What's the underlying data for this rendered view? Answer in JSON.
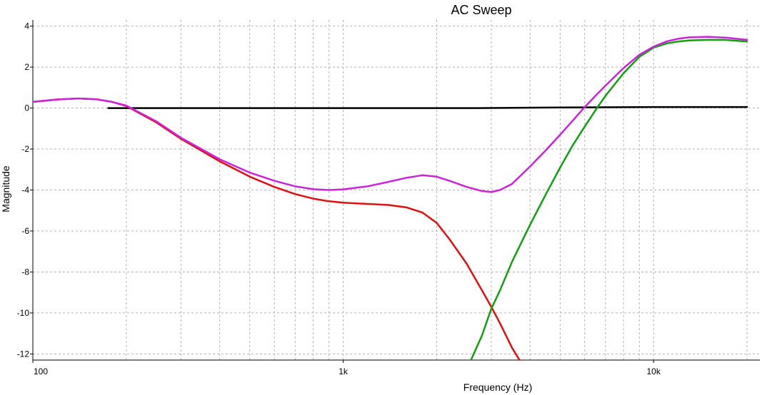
{
  "chart_data": {
    "type": "line",
    "title": "AC Sweep",
    "xlabel": "Frequency (Hz)",
    "ylabel": "Magnitude",
    "xscale": "log",
    "xlim": [
      100,
      22000
    ],
    "ylim": [
      -12.3,
      4.3
    ],
    "grid": true,
    "x_ticks": [
      {
        "value": 100,
        "label": "100"
      },
      {
        "value": 1000,
        "label": "1k"
      },
      {
        "value": 10000,
        "label": "10k"
      }
    ],
    "y_ticks": [
      {
        "value": 4,
        "label": "4"
      },
      {
        "value": 2,
        "label": "2"
      },
      {
        "value": 0,
        "label": "0"
      },
      {
        "value": -2,
        "label": "-2"
      },
      {
        "value": -4,
        "label": "-4"
      },
      {
        "value": -6,
        "label": "-6"
      },
      {
        "value": -8,
        "label": "-8"
      },
      {
        "value": -10,
        "label": "-10"
      },
      {
        "value": -12,
        "label": "-12"
      }
    ],
    "series": [
      {
        "color": "#000000",
        "x": [
          175,
          1000,
          2700,
          5000,
          10000,
          20000
        ],
        "y": [
          0.0,
          0.0,
          0.0,
          0.03,
          0.05,
          0.05
        ]
      },
      {
        "color": "#e01010",
        "x": [
          100,
          120,
          140,
          160,
          180,
          200,
          250,
          300,
          400,
          500,
          600,
          700,
          800,
          900,
          1000,
          1200,
          1400,
          1600,
          1800,
          2000,
          2200,
          2500,
          2800,
          3000,
          3200,
          3500,
          3700
        ],
        "y": [
          0.3,
          0.42,
          0.47,
          0.43,
          0.3,
          0.1,
          -0.7,
          -1.5,
          -2.6,
          -3.35,
          -3.85,
          -4.2,
          -4.42,
          -4.55,
          -4.62,
          -4.68,
          -4.73,
          -4.85,
          -5.1,
          -5.6,
          -6.4,
          -7.6,
          -8.9,
          -9.7,
          -10.5,
          -11.7,
          -12.3
        ]
      },
      {
        "color": "#10a010",
        "x": [
          2580,
          2800,
          3000,
          3200,
          3500,
          4000,
          4500,
          5000,
          5500,
          6000,
          6500,
          7000,
          8000,
          9000,
          10000,
          11000,
          12000,
          13000,
          15000,
          17000,
          20000
        ],
        "y": [
          -12.3,
          -11.1,
          -9.8,
          -8.9,
          -7.5,
          -5.7,
          -4.2,
          -2.9,
          -1.8,
          -0.9,
          -0.1,
          0.6,
          1.7,
          2.5,
          2.95,
          3.15,
          3.25,
          3.3,
          3.33,
          3.33,
          3.25
        ]
      },
      {
        "color": "#cc22dd",
        "x": [
          100,
          120,
          140,
          160,
          180,
          200,
          250,
          300,
          400,
          500,
          600,
          700,
          800,
          900,
          1000,
          1200,
          1400,
          1600,
          1800,
          2000,
          2200,
          2500,
          2800,
          3000,
          3200,
          3500,
          4000,
          4500,
          5000,
          5500,
          6000,
          6500,
          7000,
          8000,
          9000,
          10000,
          11000,
          12000,
          13000,
          15000,
          17000,
          20000
        ],
        "y": [
          0.3,
          0.42,
          0.47,
          0.43,
          0.3,
          0.12,
          -0.65,
          -1.45,
          -2.5,
          -3.15,
          -3.55,
          -3.82,
          -3.96,
          -4.0,
          -3.97,
          -3.82,
          -3.6,
          -3.4,
          -3.28,
          -3.35,
          -3.55,
          -3.85,
          -4.05,
          -4.1,
          -4.0,
          -3.7,
          -2.85,
          -2.05,
          -1.3,
          -0.6,
          0.05,
          0.6,
          1.1,
          1.95,
          2.6,
          3.0,
          3.25,
          3.38,
          3.45,
          3.48,
          3.44,
          3.33
        ]
      }
    ]
  }
}
